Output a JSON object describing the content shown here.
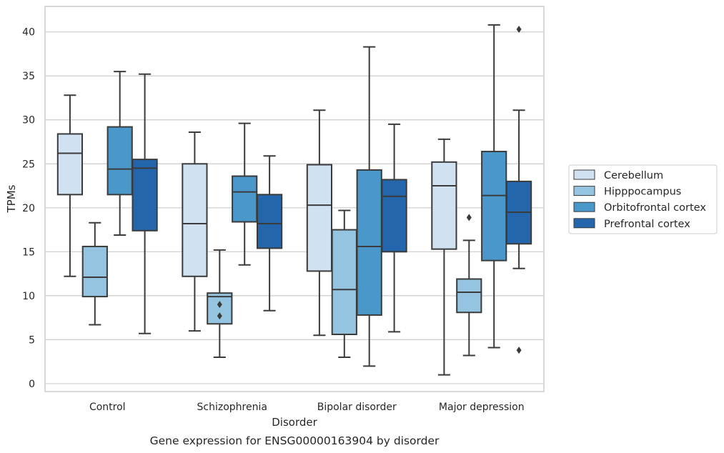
{
  "chart_data": {
    "type": "box",
    "title": "Gene expression for ENSG00000163904 by disorder",
    "xlabel": "Disorder",
    "ylabel": "TPMs",
    "ylim": [
      -0.9,
      42.9
    ],
    "yticks": [
      0,
      5,
      10,
      15,
      20,
      25,
      30,
      35,
      40
    ],
    "grid": "horizontal",
    "legend_position": "right",
    "categories": [
      "Control",
      "Schizophrenia",
      "Bipolar disorder",
      "Major depression"
    ],
    "series": [
      {
        "name": "Cerebellum",
        "color": "#d0e1f2",
        "boxes": [
          {
            "whislo": 12.2,
            "q1": 21.5,
            "med": 26.2,
            "q3": 28.4,
            "whishi": 32.8,
            "fliers": []
          },
          {
            "whislo": 6.0,
            "q1": 12.2,
            "med": 18.2,
            "q3": 25.0,
            "whishi": 28.6,
            "fliers": []
          },
          {
            "whislo": 5.5,
            "q1": 12.8,
            "med": 20.3,
            "q3": 24.9,
            "whishi": 31.1,
            "fliers": []
          },
          {
            "whislo": 1.0,
            "q1": 15.3,
            "med": 22.5,
            "q3": 25.2,
            "whishi": 27.8,
            "fliers": []
          }
        ]
      },
      {
        "name": "Hipppocampus",
        "color": "#94c4df",
        "boxes": [
          {
            "whislo": 6.7,
            "q1": 9.9,
            "med": 12.1,
            "q3": 15.6,
            "whishi": 18.3,
            "fliers": []
          },
          {
            "whislo": 3.0,
            "q1": 6.8,
            "med": 9.9,
            "q3": 10.3,
            "whishi": 15.2,
            "fliers": [
              9.0,
              7.7
            ]
          },
          {
            "whislo": 3.0,
            "q1": 5.6,
            "med": 10.7,
            "q3": 17.5,
            "whishi": 19.7,
            "fliers": []
          },
          {
            "whislo": 3.2,
            "q1": 8.1,
            "med": 10.4,
            "q3": 11.9,
            "whishi": 16.3,
            "fliers": [
              18.9
            ]
          }
        ]
      },
      {
        "name": "Orbitofrontal cortex",
        "color": "#4a98c9",
        "boxes": [
          {
            "whislo": 16.9,
            "q1": 21.5,
            "med": 24.4,
            "q3": 29.2,
            "whishi": 35.5,
            "fliers": []
          },
          {
            "whislo": 13.5,
            "q1": 18.4,
            "med": 21.8,
            "q3": 23.6,
            "whishi": 29.6,
            "fliers": []
          },
          {
            "whislo": 2.0,
            "q1": 7.8,
            "med": 15.6,
            "q3": 24.3,
            "whishi": 38.3,
            "fliers": []
          },
          {
            "whislo": 4.1,
            "q1": 14.0,
            "med": 21.4,
            "q3": 26.4,
            "whishi": 40.8,
            "fliers": []
          }
        ]
      },
      {
        "name": "Prefrontal cortex",
        "color": "#2366ac",
        "boxes": [
          {
            "whislo": 5.7,
            "q1": 17.4,
            "med": 24.5,
            "q3": 25.5,
            "whishi": 35.2,
            "fliers": []
          },
          {
            "whislo": 8.3,
            "q1": 15.4,
            "med": 18.2,
            "q3": 21.5,
            "whishi": 25.9,
            "fliers": []
          },
          {
            "whislo": 5.9,
            "q1": 15.0,
            "med": 21.3,
            "q3": 23.2,
            "whishi": 29.5,
            "fliers": []
          },
          {
            "whislo": 13.1,
            "q1": 15.9,
            "med": 19.5,
            "q3": 23.0,
            "whishi": 31.1,
            "fliers": [
              40.3,
              3.8
            ]
          }
        ]
      }
    ]
  }
}
